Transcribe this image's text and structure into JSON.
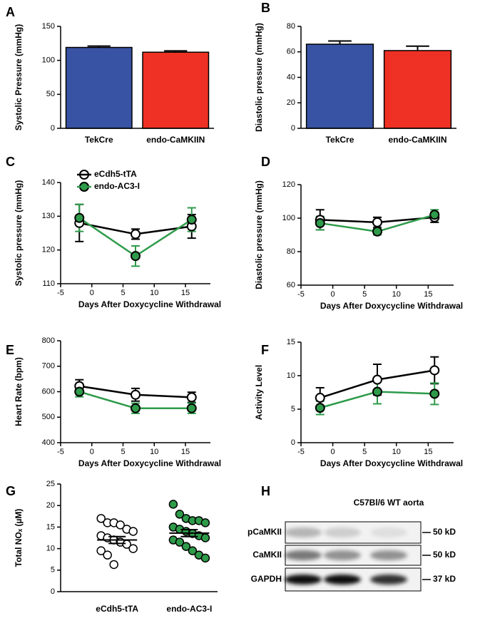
{
  "chart_data": [
    {
      "type": "bar",
      "label": "A",
      "ylabel": "Systolic Pressure (mmHg)",
      "categories": [
        "TekCre",
        "endo-CaMKIIN"
      ],
      "values": [
        119,
        112
      ],
      "errors": [
        2,
        2
      ],
      "colors": [
        "#3953a4",
        "#ee3124"
      ],
      "ylim": [
        0,
        150
      ],
      "yticks": [
        0,
        50,
        100,
        150
      ]
    },
    {
      "type": "bar",
      "label": "B",
      "ylabel": "Diastolic pressure (mmHg)",
      "categories": [
        "TekCre",
        "endo-CaMKIIN"
      ],
      "values": [
        66,
        61
      ],
      "errors": [
        2.5,
        3.5
      ],
      "colors": [
        "#3953a4",
        "#ee3124"
      ],
      "ylim": [
        0,
        80
      ],
      "yticks": [
        0,
        20,
        40,
        60,
        80
      ]
    },
    {
      "type": "line",
      "label": "C",
      "ylabel": "Systolic pressure (mmHg)",
      "xlabel": "Days After Doxycycline Withdrawal",
      "x": [
        -2,
        7,
        16
      ],
      "series": [
        {
          "name": "eCdh5-tTA",
          "color": "#000000",
          "marker": "open",
          "values": [
            128,
            124.7,
            127
          ],
          "errors": [
            5.5,
            1.5,
            3.5
          ]
        },
        {
          "name": "endo-AC3-I",
          "color": "#2e9b4a",
          "marker": "filled",
          "values": [
            129.5,
            118.2,
            129
          ],
          "errors": [
            4,
            3,
            3.5
          ]
        }
      ],
      "xlim": [
        -5,
        19
      ],
      "xticks": [
        -5,
        0,
        5,
        10,
        15
      ],
      "ylim": [
        110,
        140
      ],
      "yticks": [
        110,
        120,
        130,
        140
      ],
      "legend": "upper left"
    },
    {
      "type": "line",
      "label": "D",
      "ylabel": "Diastolic pressure (mmHg)",
      "xlabel": "Days After Doxycycline Withdrawal",
      "x": [
        -2,
        7,
        16
      ],
      "series": [
        {
          "color": "#000000",
          "marker": "open",
          "values": [
            99,
            97.5,
            100.5
          ],
          "errors": [
            6,
            3,
            3
          ]
        },
        {
          "color": "#2e9b4a",
          "marker": "filled",
          "values": [
            97,
            92,
            102
          ],
          "errors": [
            4,
            2,
            3
          ]
        }
      ],
      "xlim": [
        -5,
        19
      ],
      "xticks": [
        -5,
        0,
        5,
        10,
        15
      ],
      "ylim": [
        60,
        120
      ],
      "yticks": [
        60,
        80,
        100,
        120
      ]
    },
    {
      "type": "line",
      "label": "E",
      "ylabel": "Heart Rate (bpm)",
      "xlabel": "Days After Doxycycline Withdrawal",
      "x": [
        -2,
        7,
        16
      ],
      "series": [
        {
          "color": "#000000",
          "marker": "open",
          "values": [
            622,
            588,
            578
          ],
          "errors": [
            25,
            25,
            20
          ]
        },
        {
          "color": "#2e9b4a",
          "marker": "filled",
          "values": [
            600,
            535,
            535
          ],
          "errors": [
            20,
            20,
            20
          ]
        }
      ],
      "xlim": [
        -5,
        19
      ],
      "xticks": [
        -5,
        0,
        5,
        10,
        15
      ],
      "ylim": [
        400,
        800
      ],
      "yticks": [
        400,
        500,
        600,
        700,
        800
      ]
    },
    {
      "type": "line",
      "label": "F",
      "ylabel": "Activity Level",
      "xlabel": "Days After Doxycycline Withdrawal",
      "x": [
        -2,
        7,
        16
      ],
      "series": [
        {
          "color": "#000000",
          "marker": "open",
          "values": [
            6.7,
            9.4,
            10.8
          ],
          "errors": [
            1.5,
            2.3,
            2
          ]
        },
        {
          "color": "#2e9b4a",
          "marker": "filled",
          "values": [
            5.2,
            7.6,
            7.3
          ],
          "errors": [
            1,
            1.8,
            1.6
          ]
        }
      ],
      "xlim": [
        -5,
        19
      ],
      "xticks": [
        -5,
        0,
        5,
        10,
        15
      ],
      "ylim": [
        0,
        15
      ],
      "yticks": [
        0,
        5,
        10,
        15
      ]
    },
    {
      "type": "dot",
      "label": "G",
      "ylabel": "Total NOₓ (µM)",
      "categories": [
        "eCdh5-tTA",
        "endo-AC3-I"
      ],
      "points": [
        [
          17,
          16,
          16,
          15.5,
          14.5,
          14,
          13,
          12.5,
          12,
          11.5,
          11,
          10,
          9.5,
          8.5,
          6.3
        ],
        [
          20.3,
          18,
          17,
          16.5,
          16.5,
          16,
          15,
          14.5,
          14,
          13.5,
          13,
          12.5,
          12,
          11.5,
          10.5,
          9.5,
          8.5,
          7.8
        ]
      ],
      "means": [
        12,
        13.6
      ],
      "sems": [
        0.8,
        0.8
      ],
      "colors": [
        "#ffffff",
        "#2e9b4a"
      ],
      "ylim": [
        0,
        25
      ],
      "yticks": [
        0,
        5,
        10,
        15,
        20,
        25
      ]
    },
    {
      "type": "blot",
      "label": "H",
      "title": "C57Bl/6 WT aorta",
      "rows": [
        {
          "label": "pCaMKII",
          "marker": "50 kD"
        },
        {
          "label": "CaMKII",
          "marker": "50 kD"
        },
        {
          "label": "GAPDH",
          "marker": "37 kD"
        }
      ]
    }
  ]
}
